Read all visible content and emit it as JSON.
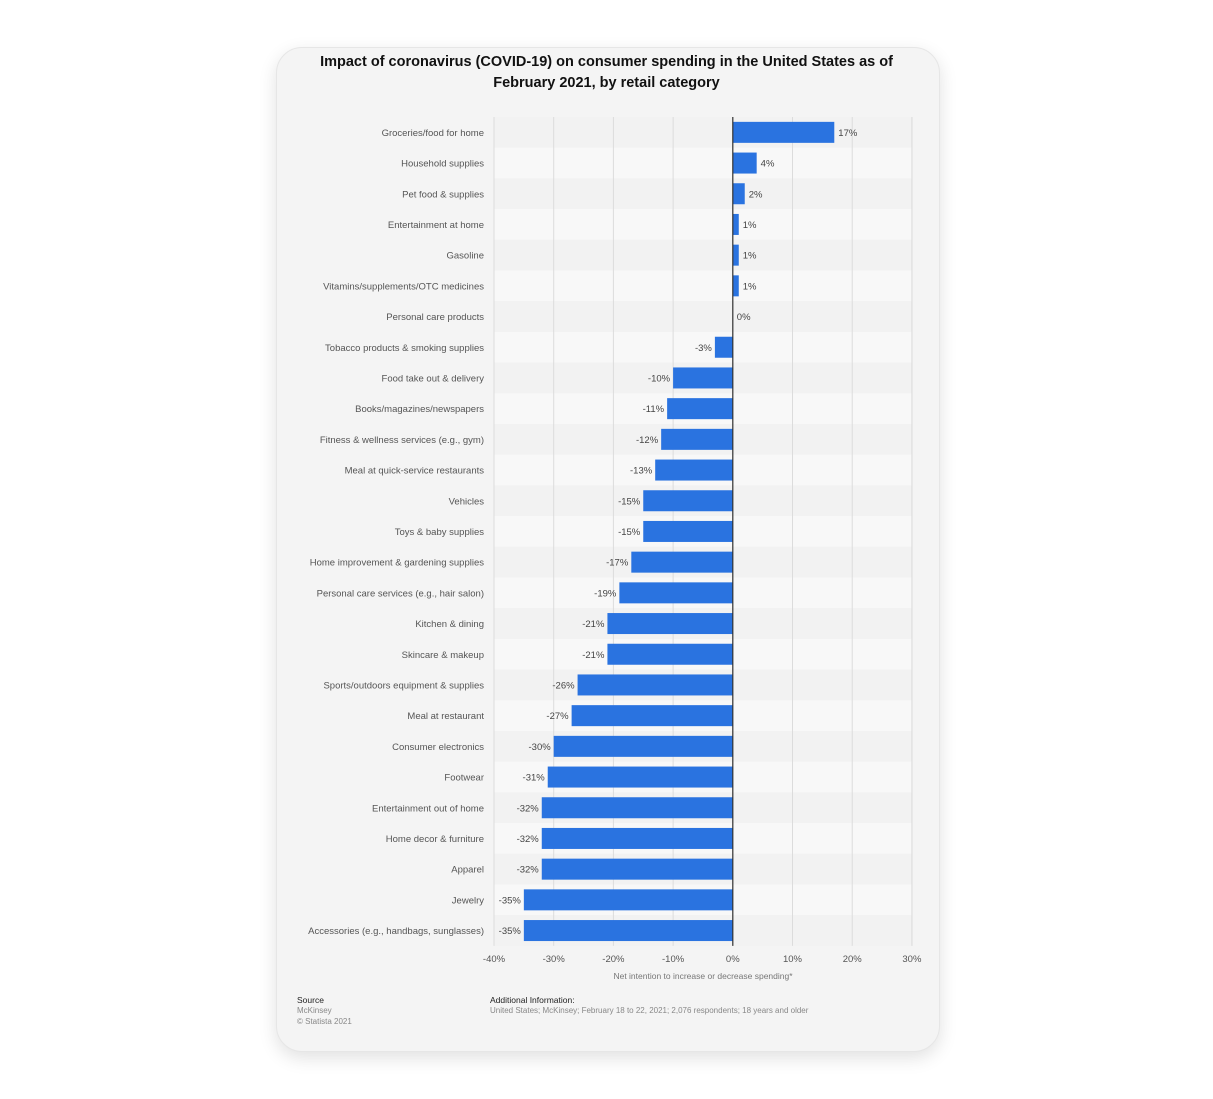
{
  "chart_data": {
    "type": "bar",
    "orientation": "horizontal",
    "title": "Impact of coronavirus (COVID-19) on consumer spending in the United States as of February 2021, by retail category",
    "xlabel": "Net intention to increase or decrease spending*",
    "ylabel": "",
    "xlim": [
      -40,
      30
    ],
    "x_ticks": [
      "-40%",
      "-30%",
      "-20%",
      "-10%",
      "0%",
      "10%",
      "20%",
      "30%"
    ],
    "grid": true,
    "bar_color": "#2a73e0",
    "categories": [
      "Groceries/food for home",
      "Household supplies",
      "Pet food & supplies",
      "Entertainment at home",
      "Gasoline",
      "Vitamins/supplements/OTC medicines",
      "Personal care products",
      "Tobacco products & smoking supplies",
      "Food take out & delivery",
      "Books/magazines/newspapers",
      "Fitness & wellness services (e.g., gym)",
      "Meal at quick-service restaurants",
      "Vehicles",
      "Toys & baby supplies",
      "Home improvement & gardening supplies",
      "Personal care services (e.g., hair salon)",
      "Kitchen & dining",
      "Skincare & makeup",
      "Sports/outdoors equipment & supplies",
      "Meal at restaurant",
      "Consumer electronics",
      "Footwear",
      "Entertainment out of home",
      "Home decor & furniture",
      "Apparel",
      "Jewelry",
      "Accessories (e.g., handbags, sunglasses)"
    ],
    "values": [
      17,
      4,
      2,
      1,
      1,
      1,
      0,
      -3,
      -10,
      -11,
      -12,
      -13,
      -15,
      -15,
      -17,
      -19,
      -21,
      -21,
      -26,
      -27,
      -30,
      -31,
      -32,
      -32,
      -32,
      -35,
      -35
    ],
    "data_labels": [
      "17%",
      "4%",
      "2%",
      "1%",
      "1%",
      "1%",
      "0%",
      "-3%",
      "-10%",
      "-11%",
      "-12%",
      "-13%",
      "-15%",
      "-15%",
      "-17%",
      "-19%",
      "-21%",
      "-21%",
      "-26%",
      "-27%",
      "-30%",
      "-31%",
      "-32%",
      "-32%",
      "-32%",
      "-35%",
      "-35%"
    ]
  },
  "footer": {
    "source_heading": "Source",
    "source_name": "McKinsey",
    "copyright": "© Statista 2021",
    "info_heading": "Additional Information:",
    "info_text": "United States; McKinsey; February 18 to 22, 2021; 2,076 respondents; 18 years and older"
  }
}
